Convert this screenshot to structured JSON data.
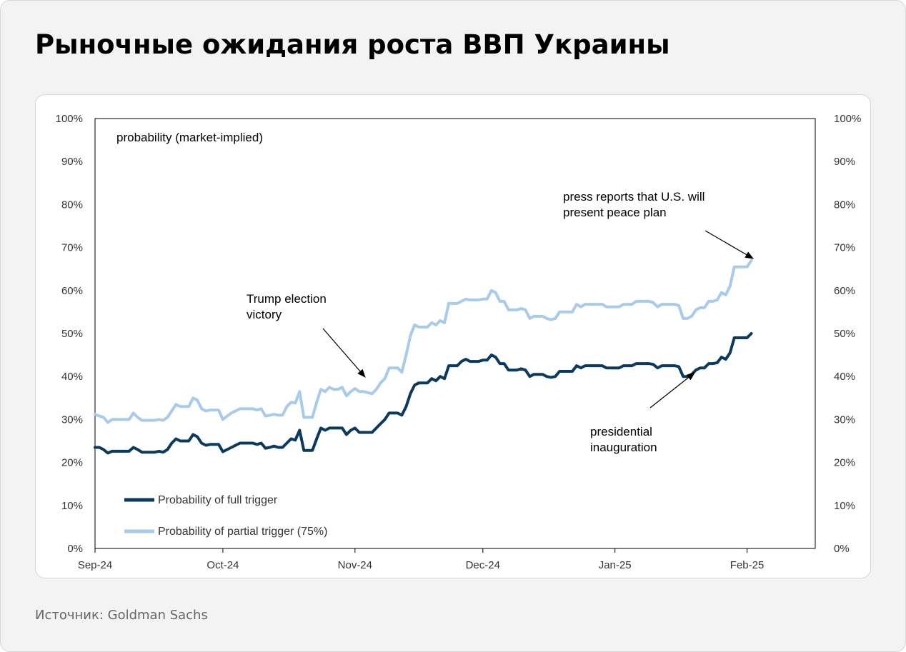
{
  "header": {
    "title": "Рыночные ожидания роста ВВП Украины"
  },
  "footer": {
    "source": "Источник: Goldman Sachs"
  },
  "colors": {
    "full": "#0b3a5e",
    "partial": "#a8cbeb"
  },
  "chart_data": {
    "type": "line",
    "title": "",
    "panel_label": "probability (market-implied)",
    "ylim": [
      0,
      100
    ],
    "y_ticks": [
      "0%",
      "10%",
      "20%",
      "30%",
      "40%",
      "50%",
      "60%",
      "70%",
      "80%",
      "90%",
      "100%"
    ],
    "x_ticks": [
      "Sep-24",
      "Oct-24",
      "Nov-24",
      "Dec-24",
      "Jan-25",
      "Feb-25"
    ],
    "x_tick_dates": [
      "2024-09-01",
      "2024-10-01",
      "2024-11-01",
      "2024-12-01",
      "2025-01-01",
      "2025-02-01"
    ],
    "x_range": [
      "2024-09-01",
      "2025-02-17"
    ],
    "legend_position": "bottom-left",
    "series": [
      {
        "name": "Probability of full trigger",
        "color": "#0b3a5e",
        "points": [
          [
            "2024-09-01",
            23.5
          ],
          [
            "2024-09-02",
            23.5
          ],
          [
            "2024-09-03",
            23
          ],
          [
            "2024-09-04",
            22.2
          ],
          [
            "2024-09-05",
            22.6
          ],
          [
            "2024-09-07",
            22.6
          ],
          [
            "2024-09-09",
            22.6
          ],
          [
            "2024-09-10",
            23.5
          ],
          [
            "2024-09-11",
            23
          ],
          [
            "2024-09-12",
            22.4
          ],
          [
            "2024-09-15",
            22.4
          ],
          [
            "2024-09-16",
            22.6
          ],
          [
            "2024-09-17",
            22.4
          ],
          [
            "2024-09-18",
            23
          ],
          [
            "2024-09-19",
            24.5
          ],
          [
            "2024-09-20",
            25.5
          ],
          [
            "2024-09-21",
            25
          ],
          [
            "2024-09-23",
            25
          ],
          [
            "2024-09-24",
            26.5
          ],
          [
            "2024-09-25",
            26
          ],
          [
            "2024-09-26",
            24.5
          ],
          [
            "2024-09-27",
            24
          ],
          [
            "2024-09-28",
            24.2
          ],
          [
            "2024-09-30",
            24.2
          ],
          [
            "2024-10-01",
            22.5
          ],
          [
            "2024-10-02",
            23
          ],
          [
            "2024-10-03",
            23.5
          ],
          [
            "2024-10-04",
            24
          ],
          [
            "2024-10-05",
            24.5
          ],
          [
            "2024-10-07",
            24.5
          ],
          [
            "2024-10-08",
            24.5
          ],
          [
            "2024-10-09",
            24.2
          ],
          [
            "2024-10-10",
            24.5
          ],
          [
            "2024-10-11",
            23.3
          ],
          [
            "2024-10-12",
            23.5
          ],
          [
            "2024-10-13",
            23.8
          ],
          [
            "2024-10-14",
            23.5
          ],
          [
            "2024-10-15",
            23.5
          ],
          [
            "2024-10-16",
            24.5
          ],
          [
            "2024-10-17",
            25.5
          ],
          [
            "2024-10-18",
            25.2
          ],
          [
            "2024-10-19",
            27.5
          ],
          [
            "2024-10-20",
            22.8
          ],
          [
            "2024-10-22",
            22.8
          ],
          [
            "2024-10-23",
            25.5
          ],
          [
            "2024-10-24",
            28
          ],
          [
            "2024-10-25",
            27.5
          ],
          [
            "2024-10-26",
            28
          ],
          [
            "2024-10-28",
            28
          ],
          [
            "2024-10-29",
            28
          ],
          [
            "2024-10-30",
            26.5
          ],
          [
            "2024-10-31",
            27.5
          ],
          [
            "2024-11-01",
            28
          ],
          [
            "2024-11-02",
            27
          ],
          [
            "2024-11-03",
            27
          ],
          [
            "2024-11-05",
            27
          ],
          [
            "2024-11-06",
            28
          ],
          [
            "2024-11-07",
            29
          ],
          [
            "2024-11-08",
            30
          ],
          [
            "2024-11-09",
            31.5
          ],
          [
            "2024-11-11",
            31.5
          ],
          [
            "2024-11-12",
            31
          ],
          [
            "2024-11-13",
            33
          ],
          [
            "2024-11-14",
            36
          ],
          [
            "2024-11-15",
            38
          ],
          [
            "2024-11-16",
            38.5
          ],
          [
            "2024-11-18",
            38.5
          ],
          [
            "2024-11-19",
            39.5
          ],
          [
            "2024-11-20",
            39
          ],
          [
            "2024-11-21",
            40
          ],
          [
            "2024-11-22",
            39.5
          ],
          [
            "2024-11-23",
            42.5
          ],
          [
            "2024-11-25",
            42.5
          ],
          [
            "2024-11-26",
            43.5
          ],
          [
            "2024-11-27",
            44
          ],
          [
            "2024-11-28",
            43.5
          ],
          [
            "2024-11-30",
            43.5
          ],
          [
            "2024-12-01",
            43.8
          ],
          [
            "2024-12-02",
            43.8
          ],
          [
            "2024-12-03",
            45
          ],
          [
            "2024-12-04",
            44.5
          ],
          [
            "2024-12-05",
            43
          ],
          [
            "2024-12-06",
            43
          ],
          [
            "2024-12-07",
            41.5
          ],
          [
            "2024-12-09",
            41.5
          ],
          [
            "2024-12-10",
            41.8
          ],
          [
            "2024-12-11",
            41.5
          ],
          [
            "2024-12-12",
            40
          ],
          [
            "2024-12-13",
            40.5
          ],
          [
            "2024-12-15",
            40.5
          ],
          [
            "2024-12-16",
            40
          ],
          [
            "2024-12-17",
            39.8
          ],
          [
            "2024-12-18",
            40
          ],
          [
            "2024-12-19",
            41.2
          ],
          [
            "2024-12-22",
            41.2
          ],
          [
            "2024-12-23",
            42.5
          ],
          [
            "2024-12-24",
            42
          ],
          [
            "2024-12-25",
            42.5
          ],
          [
            "2024-12-29",
            42.5
          ],
          [
            "2024-12-30",
            42
          ],
          [
            "2025-01-02",
            42
          ],
          [
            "2025-01-03",
            42.5
          ],
          [
            "2025-01-05",
            42.5
          ],
          [
            "2025-01-06",
            43
          ],
          [
            "2025-01-09",
            43
          ],
          [
            "2025-01-10",
            42.8
          ],
          [
            "2025-01-11",
            42
          ],
          [
            "2025-01-12",
            42.5
          ],
          [
            "2025-01-15",
            42.5
          ],
          [
            "2025-01-16",
            42.3
          ],
          [
            "2025-01-17",
            40
          ],
          [
            "2025-01-18",
            40
          ],
          [
            "2025-01-19",
            40.5
          ],
          [
            "2025-01-20",
            41.5
          ],
          [
            "2025-01-21",
            42
          ],
          [
            "2025-01-22",
            42
          ],
          [
            "2025-01-23",
            43
          ],
          [
            "2025-01-24",
            43
          ],
          [
            "2025-01-25",
            43.2
          ],
          [
            "2025-01-26",
            44.5
          ],
          [
            "2025-01-27",
            44
          ],
          [
            "2025-01-28",
            45.5
          ],
          [
            "2025-01-29",
            49
          ],
          [
            "2025-01-30",
            49
          ],
          [
            "2025-02-01",
            49
          ],
          [
            "2025-02-02",
            50
          ]
        ]
      },
      {
        "name": "Probability of partial trigger (75%)",
        "color": "#a8cbeb",
        "points": [
          [
            "2024-09-01",
            31.2
          ],
          [
            "2024-09-02",
            30.8
          ],
          [
            "2024-09-03",
            30.5
          ],
          [
            "2024-09-04",
            29.3
          ],
          [
            "2024-09-05",
            30
          ],
          [
            "2024-09-07",
            30
          ],
          [
            "2024-09-09",
            30
          ],
          [
            "2024-09-10",
            31.5
          ],
          [
            "2024-09-11",
            30.5
          ],
          [
            "2024-09-12",
            29.8
          ],
          [
            "2024-09-15",
            29.8
          ],
          [
            "2024-09-16",
            30
          ],
          [
            "2024-09-17",
            29.8
          ],
          [
            "2024-09-18",
            30.5
          ],
          [
            "2024-09-19",
            32
          ],
          [
            "2024-09-20",
            33.5
          ],
          [
            "2024-09-21",
            33
          ],
          [
            "2024-09-23",
            33
          ],
          [
            "2024-09-24",
            35
          ],
          [
            "2024-09-25",
            34.5
          ],
          [
            "2024-09-26",
            32.5
          ],
          [
            "2024-09-27",
            32
          ],
          [
            "2024-09-28",
            32.2
          ],
          [
            "2024-09-30",
            32.2
          ],
          [
            "2024-10-01",
            30
          ],
          [
            "2024-10-02",
            30.8
          ],
          [
            "2024-10-03",
            31.5
          ],
          [
            "2024-10-04",
            32
          ],
          [
            "2024-10-05",
            32.5
          ],
          [
            "2024-10-07",
            32.5
          ],
          [
            "2024-10-08",
            32.5
          ],
          [
            "2024-10-09",
            32.2
          ],
          [
            "2024-10-10",
            32.5
          ],
          [
            "2024-10-11",
            30.8
          ],
          [
            "2024-10-12",
            31
          ],
          [
            "2024-10-13",
            31.2
          ],
          [
            "2024-10-14",
            31
          ],
          [
            "2024-10-15",
            31
          ],
          [
            "2024-10-16",
            33
          ],
          [
            "2024-10-17",
            34
          ],
          [
            "2024-10-18",
            33.8
          ],
          [
            "2024-10-19",
            36.5
          ],
          [
            "2024-10-20",
            30.5
          ],
          [
            "2024-10-22",
            30.5
          ],
          [
            "2024-10-23",
            34
          ],
          [
            "2024-10-24",
            37
          ],
          [
            "2024-10-25",
            36.5
          ],
          [
            "2024-10-26",
            37.5
          ],
          [
            "2024-10-27",
            37
          ],
          [
            "2024-10-28",
            37
          ],
          [
            "2024-10-29",
            37.5
          ],
          [
            "2024-10-30",
            35.5
          ],
          [
            "2024-10-31",
            36.5
          ],
          [
            "2024-11-01",
            37.2
          ],
          [
            "2024-11-02",
            36.5
          ],
          [
            "2024-11-03",
            36.5
          ],
          [
            "2024-11-05",
            36
          ],
          [
            "2024-11-06",
            37
          ],
          [
            "2024-11-07",
            38.5
          ],
          [
            "2024-11-08",
            39.5
          ],
          [
            "2024-11-09",
            42
          ],
          [
            "2024-11-11",
            42
          ],
          [
            "2024-11-12",
            41
          ],
          [
            "2024-11-13",
            45
          ],
          [
            "2024-11-14",
            49.5
          ],
          [
            "2024-11-15",
            52
          ],
          [
            "2024-11-16",
            51.5
          ],
          [
            "2024-11-18",
            51.5
          ],
          [
            "2024-11-19",
            52.5
          ],
          [
            "2024-11-20",
            52
          ],
          [
            "2024-11-21",
            53
          ],
          [
            "2024-11-22",
            52.5
          ],
          [
            "2024-11-23",
            57
          ],
          [
            "2024-11-25",
            57
          ],
          [
            "2024-11-26",
            57.5
          ],
          [
            "2024-11-27",
            58
          ],
          [
            "2024-11-28",
            57.8
          ],
          [
            "2024-11-30",
            57.8
          ],
          [
            "2024-12-01",
            58
          ],
          [
            "2024-12-02",
            58
          ],
          [
            "2024-12-03",
            60
          ],
          [
            "2024-12-04",
            59.5
          ],
          [
            "2024-12-05",
            57.5
          ],
          [
            "2024-12-06",
            57.5
          ],
          [
            "2024-12-07",
            55.5
          ],
          [
            "2024-12-09",
            55.5
          ],
          [
            "2024-12-10",
            55.8
          ],
          [
            "2024-12-11",
            55.5
          ],
          [
            "2024-12-12",
            53.5
          ],
          [
            "2024-12-13",
            54
          ],
          [
            "2024-12-15",
            54
          ],
          [
            "2024-12-16",
            53.5
          ],
          [
            "2024-12-17",
            53.2
          ],
          [
            "2024-12-18",
            53.5
          ],
          [
            "2024-12-19",
            55
          ],
          [
            "2024-12-22",
            55
          ],
          [
            "2024-12-23",
            56.8
          ],
          [
            "2024-12-24",
            56.2
          ],
          [
            "2024-12-25",
            56.8
          ],
          [
            "2024-12-29",
            56.8
          ],
          [
            "2024-12-30",
            56.2
          ],
          [
            "2025-01-02",
            56.2
          ],
          [
            "2025-01-03",
            56.8
          ],
          [
            "2025-01-05",
            56.8
          ],
          [
            "2025-01-06",
            57.5
          ],
          [
            "2025-01-09",
            57.5
          ],
          [
            "2025-01-10",
            57.2
          ],
          [
            "2025-01-11",
            56.2
          ],
          [
            "2025-01-12",
            56.8
          ],
          [
            "2025-01-15",
            56.8
          ],
          [
            "2025-01-16",
            56.5
          ],
          [
            "2025-01-17",
            53.5
          ],
          [
            "2025-01-18",
            53.5
          ],
          [
            "2025-01-19",
            54
          ],
          [
            "2025-01-20",
            55.5
          ],
          [
            "2025-01-21",
            56
          ],
          [
            "2025-01-22",
            56
          ],
          [
            "2025-01-23",
            57.5
          ],
          [
            "2025-01-24",
            57.5
          ],
          [
            "2025-01-25",
            57.8
          ],
          [
            "2025-01-26",
            59.5
          ],
          [
            "2025-01-27",
            59
          ],
          [
            "2025-01-28",
            61
          ],
          [
            "2025-01-29",
            65.5
          ],
          [
            "2025-01-30",
            65.5
          ],
          [
            "2025-02-01",
            65.5
          ],
          [
            "2025-02-02",
            67
          ]
        ]
      }
    ],
    "annotations": [
      {
        "lines": [
          "Trump election",
          "victory"
        ]
      },
      {
        "lines": [
          "press reports that U.S. will",
          "present peace plan"
        ]
      },
      {
        "lines": [
          "presidential",
          "inauguration"
        ]
      }
    ]
  }
}
